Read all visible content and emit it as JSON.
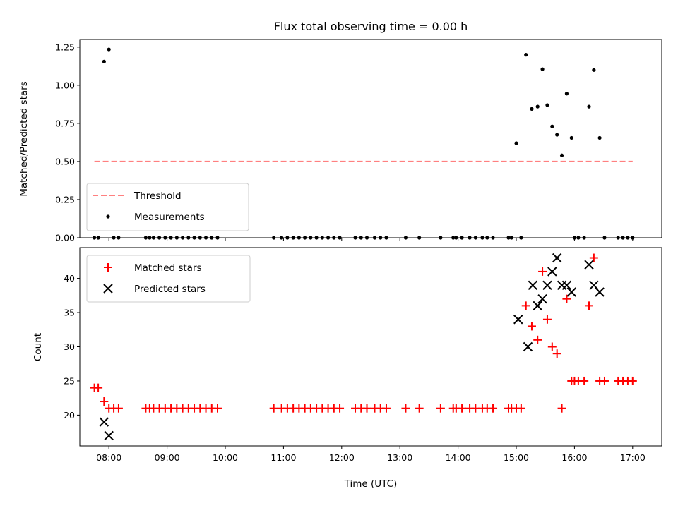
{
  "chart_data": [
    {
      "type": "scatter",
      "title": "Flux total observing time = 0.00 h",
      "ylabel": "Matched/Predicted stars",
      "xlabel": "",
      "ylim": [
        0,
        1.3
      ],
      "xlim": [
        "07:30",
        "17:30"
      ],
      "yticks": [
        0.0,
        0.25,
        0.5,
        0.75,
        1.0,
        1.25
      ],
      "ytick_labels": [
        "0.00",
        "0.25",
        "0.50",
        "0.75",
        "1.00",
        "1.25"
      ],
      "grid": false,
      "legend_position": "lower-left",
      "threshold": {
        "name": "Threshold",
        "value": 0.5,
        "x_range": [
          "07:45",
          "17:00"
        ],
        "color": "#ff8080",
        "style": "dashed"
      },
      "series": [
        {
          "name": "Measurements",
          "color": "#000000",
          "marker": "dot",
          "points": [
            [
              "07:45",
              0
            ],
            [
              "07:49",
              0
            ],
            [
              "07:55",
              1.155
            ],
            [
              "08:00",
              1.235
            ],
            [
              "08:05",
              0
            ],
            [
              "08:10",
              0
            ],
            [
              "08:38",
              0
            ],
            [
              "08:42",
              0
            ],
            [
              "08:46",
              0
            ],
            [
              "08:52",
              0
            ],
            [
              "08:58",
              0
            ],
            [
              "09:04",
              0
            ],
            [
              "09:10",
              0
            ],
            [
              "09:16",
              0
            ],
            [
              "09:22",
              0
            ],
            [
              "09:28",
              0
            ],
            [
              "09:34",
              0
            ],
            [
              "09:40",
              0
            ],
            [
              "09:46",
              0
            ],
            [
              "09:52",
              0
            ],
            [
              "10:50",
              0
            ],
            [
              "10:58",
              0
            ],
            [
              "11:04",
              0
            ],
            [
              "11:10",
              0
            ],
            [
              "11:16",
              0
            ],
            [
              "11:22",
              0
            ],
            [
              "11:28",
              0
            ],
            [
              "11:34",
              0
            ],
            [
              "11:40",
              0
            ],
            [
              "11:46",
              0
            ],
            [
              "11:52",
              0
            ],
            [
              "11:58",
              0
            ],
            [
              "12:14",
              0
            ],
            [
              "12:20",
              0
            ],
            [
              "12:26",
              0
            ],
            [
              "12:34",
              0
            ],
            [
              "12:40",
              0
            ],
            [
              "12:46",
              0
            ],
            [
              "13:06",
              0
            ],
            [
              "13:20",
              0
            ],
            [
              "13:42",
              0
            ],
            [
              "13:55",
              0
            ],
            [
              "13:58",
              0
            ],
            [
              "14:04",
              0
            ],
            [
              "14:12",
              0
            ],
            [
              "14:18",
              0
            ],
            [
              "14:25",
              0
            ],
            [
              "14:30",
              0
            ],
            [
              "14:36",
              0
            ],
            [
              "14:52",
              0
            ],
            [
              "14:55",
              0
            ],
            [
              "15:00",
              0.62
            ],
            [
              "15:05",
              0
            ],
            [
              "15:10",
              1.2
            ],
            [
              "15:16",
              0.845
            ],
            [
              "15:22",
              0.86
            ],
            [
              "15:27",
              1.105
            ],
            [
              "15:32",
              0.87
            ],
            [
              "15:37",
              0.73
            ],
            [
              "15:42",
              0.675
            ],
            [
              "15:47",
              0.54
            ],
            [
              "15:52",
              0.945
            ],
            [
              "15:57",
              0.655
            ],
            [
              "16:00",
              0
            ],
            [
              "16:04",
              0
            ],
            [
              "16:10",
              0
            ],
            [
              "16:15",
              0.86
            ],
            [
              "16:20",
              1.1
            ],
            [
              "16:26",
              0.655
            ],
            [
              "16:31",
              0
            ],
            [
              "16:45",
              0
            ],
            [
              "16:50",
              0
            ],
            [
              "16:55",
              0
            ],
            [
              "17:00",
              0
            ]
          ]
        }
      ]
    },
    {
      "type": "scatter",
      "title": "",
      "ylabel": "Count",
      "xlabel": "Time (UTC)",
      "ylim": [
        15.5,
        44.5
      ],
      "xlim": [
        "07:30",
        "17:30"
      ],
      "yticks": [
        20,
        25,
        30,
        35,
        40
      ],
      "ytick_labels": [
        "20",
        "25",
        "30",
        "35",
        "40"
      ],
      "xticks": [
        "08:00",
        "09:00",
        "10:00",
        "11:00",
        "12:00",
        "13:00",
        "14:00",
        "15:00",
        "16:00",
        "17:00"
      ],
      "grid": false,
      "legend_position": "top-left",
      "series": [
        {
          "name": "Matched stars",
          "color": "#ff0000",
          "marker": "plus",
          "points": [
            [
              "07:45",
              24
            ],
            [
              "07:49",
              24
            ],
            [
              "07:55",
              22
            ],
            [
              "08:00",
              21
            ],
            [
              "08:05",
              21
            ],
            [
              "08:10",
              21
            ],
            [
              "08:38",
              21
            ],
            [
              "08:42",
              21
            ],
            [
              "08:46",
              21
            ],
            [
              "08:52",
              21
            ],
            [
              "08:58",
              21
            ],
            [
              "09:04",
              21
            ],
            [
              "09:10",
              21
            ],
            [
              "09:16",
              21
            ],
            [
              "09:22",
              21
            ],
            [
              "09:28",
              21
            ],
            [
              "09:34",
              21
            ],
            [
              "09:40",
              21
            ],
            [
              "09:46",
              21
            ],
            [
              "09:52",
              21
            ],
            [
              "10:50",
              21
            ],
            [
              "10:58",
              21
            ],
            [
              "11:04",
              21
            ],
            [
              "11:10",
              21
            ],
            [
              "11:16",
              21
            ],
            [
              "11:22",
              21
            ],
            [
              "11:28",
              21
            ],
            [
              "11:34",
              21
            ],
            [
              "11:40",
              21
            ],
            [
              "11:46",
              21
            ],
            [
              "11:52",
              21
            ],
            [
              "11:58",
              21
            ],
            [
              "12:14",
              21
            ],
            [
              "12:20",
              21
            ],
            [
              "12:26",
              21
            ],
            [
              "12:34",
              21
            ],
            [
              "12:40",
              21
            ],
            [
              "12:46",
              21
            ],
            [
              "13:06",
              21
            ],
            [
              "13:20",
              21
            ],
            [
              "13:42",
              21
            ],
            [
              "13:55",
              21
            ],
            [
              "13:58",
              21
            ],
            [
              "14:04",
              21
            ],
            [
              "14:12",
              21
            ],
            [
              "14:18",
              21
            ],
            [
              "14:25",
              21
            ],
            [
              "14:30",
              21
            ],
            [
              "14:36",
              21
            ],
            [
              "14:52",
              21
            ],
            [
              "14:55",
              21
            ],
            [
              "15:00",
              21
            ],
            [
              "15:05",
              21
            ],
            [
              "15:10",
              36
            ],
            [
              "15:16",
              33
            ],
            [
              "15:22",
              31
            ],
            [
              "15:27",
              41
            ],
            [
              "15:32",
              34
            ],
            [
              "15:37",
              30
            ],
            [
              "15:42",
              29
            ],
            [
              "15:47",
              21
            ],
            [
              "15:52",
              37
            ],
            [
              "15:57",
              25
            ],
            [
              "16:00",
              25
            ],
            [
              "16:04",
              25
            ],
            [
              "16:10",
              25
            ],
            [
              "16:15",
              36
            ],
            [
              "16:20",
              43
            ],
            [
              "16:26",
              25
            ],
            [
              "16:31",
              25
            ],
            [
              "16:45",
              25
            ],
            [
              "16:50",
              25
            ],
            [
              "16:55",
              25
            ],
            [
              "17:00",
              25
            ]
          ]
        },
        {
          "name": "Predicted stars",
          "color": "#000000",
          "marker": "x",
          "points": [
            [
              "07:55",
              19
            ],
            [
              "08:00",
              17
            ],
            [
              "15:02",
              34
            ],
            [
              "15:12",
              30
            ],
            [
              "15:17",
              39
            ],
            [
              "15:22",
              36
            ],
            [
              "15:27",
              37
            ],
            [
              "15:32",
              39
            ],
            [
              "15:37",
              41
            ],
            [
              "15:42",
              43
            ],
            [
              "15:47",
              39
            ],
            [
              "15:52",
              39
            ],
            [
              "15:57",
              38
            ],
            [
              "16:15",
              42
            ],
            [
              "16:20",
              39
            ],
            [
              "16:26",
              38
            ]
          ]
        }
      ]
    }
  ]
}
